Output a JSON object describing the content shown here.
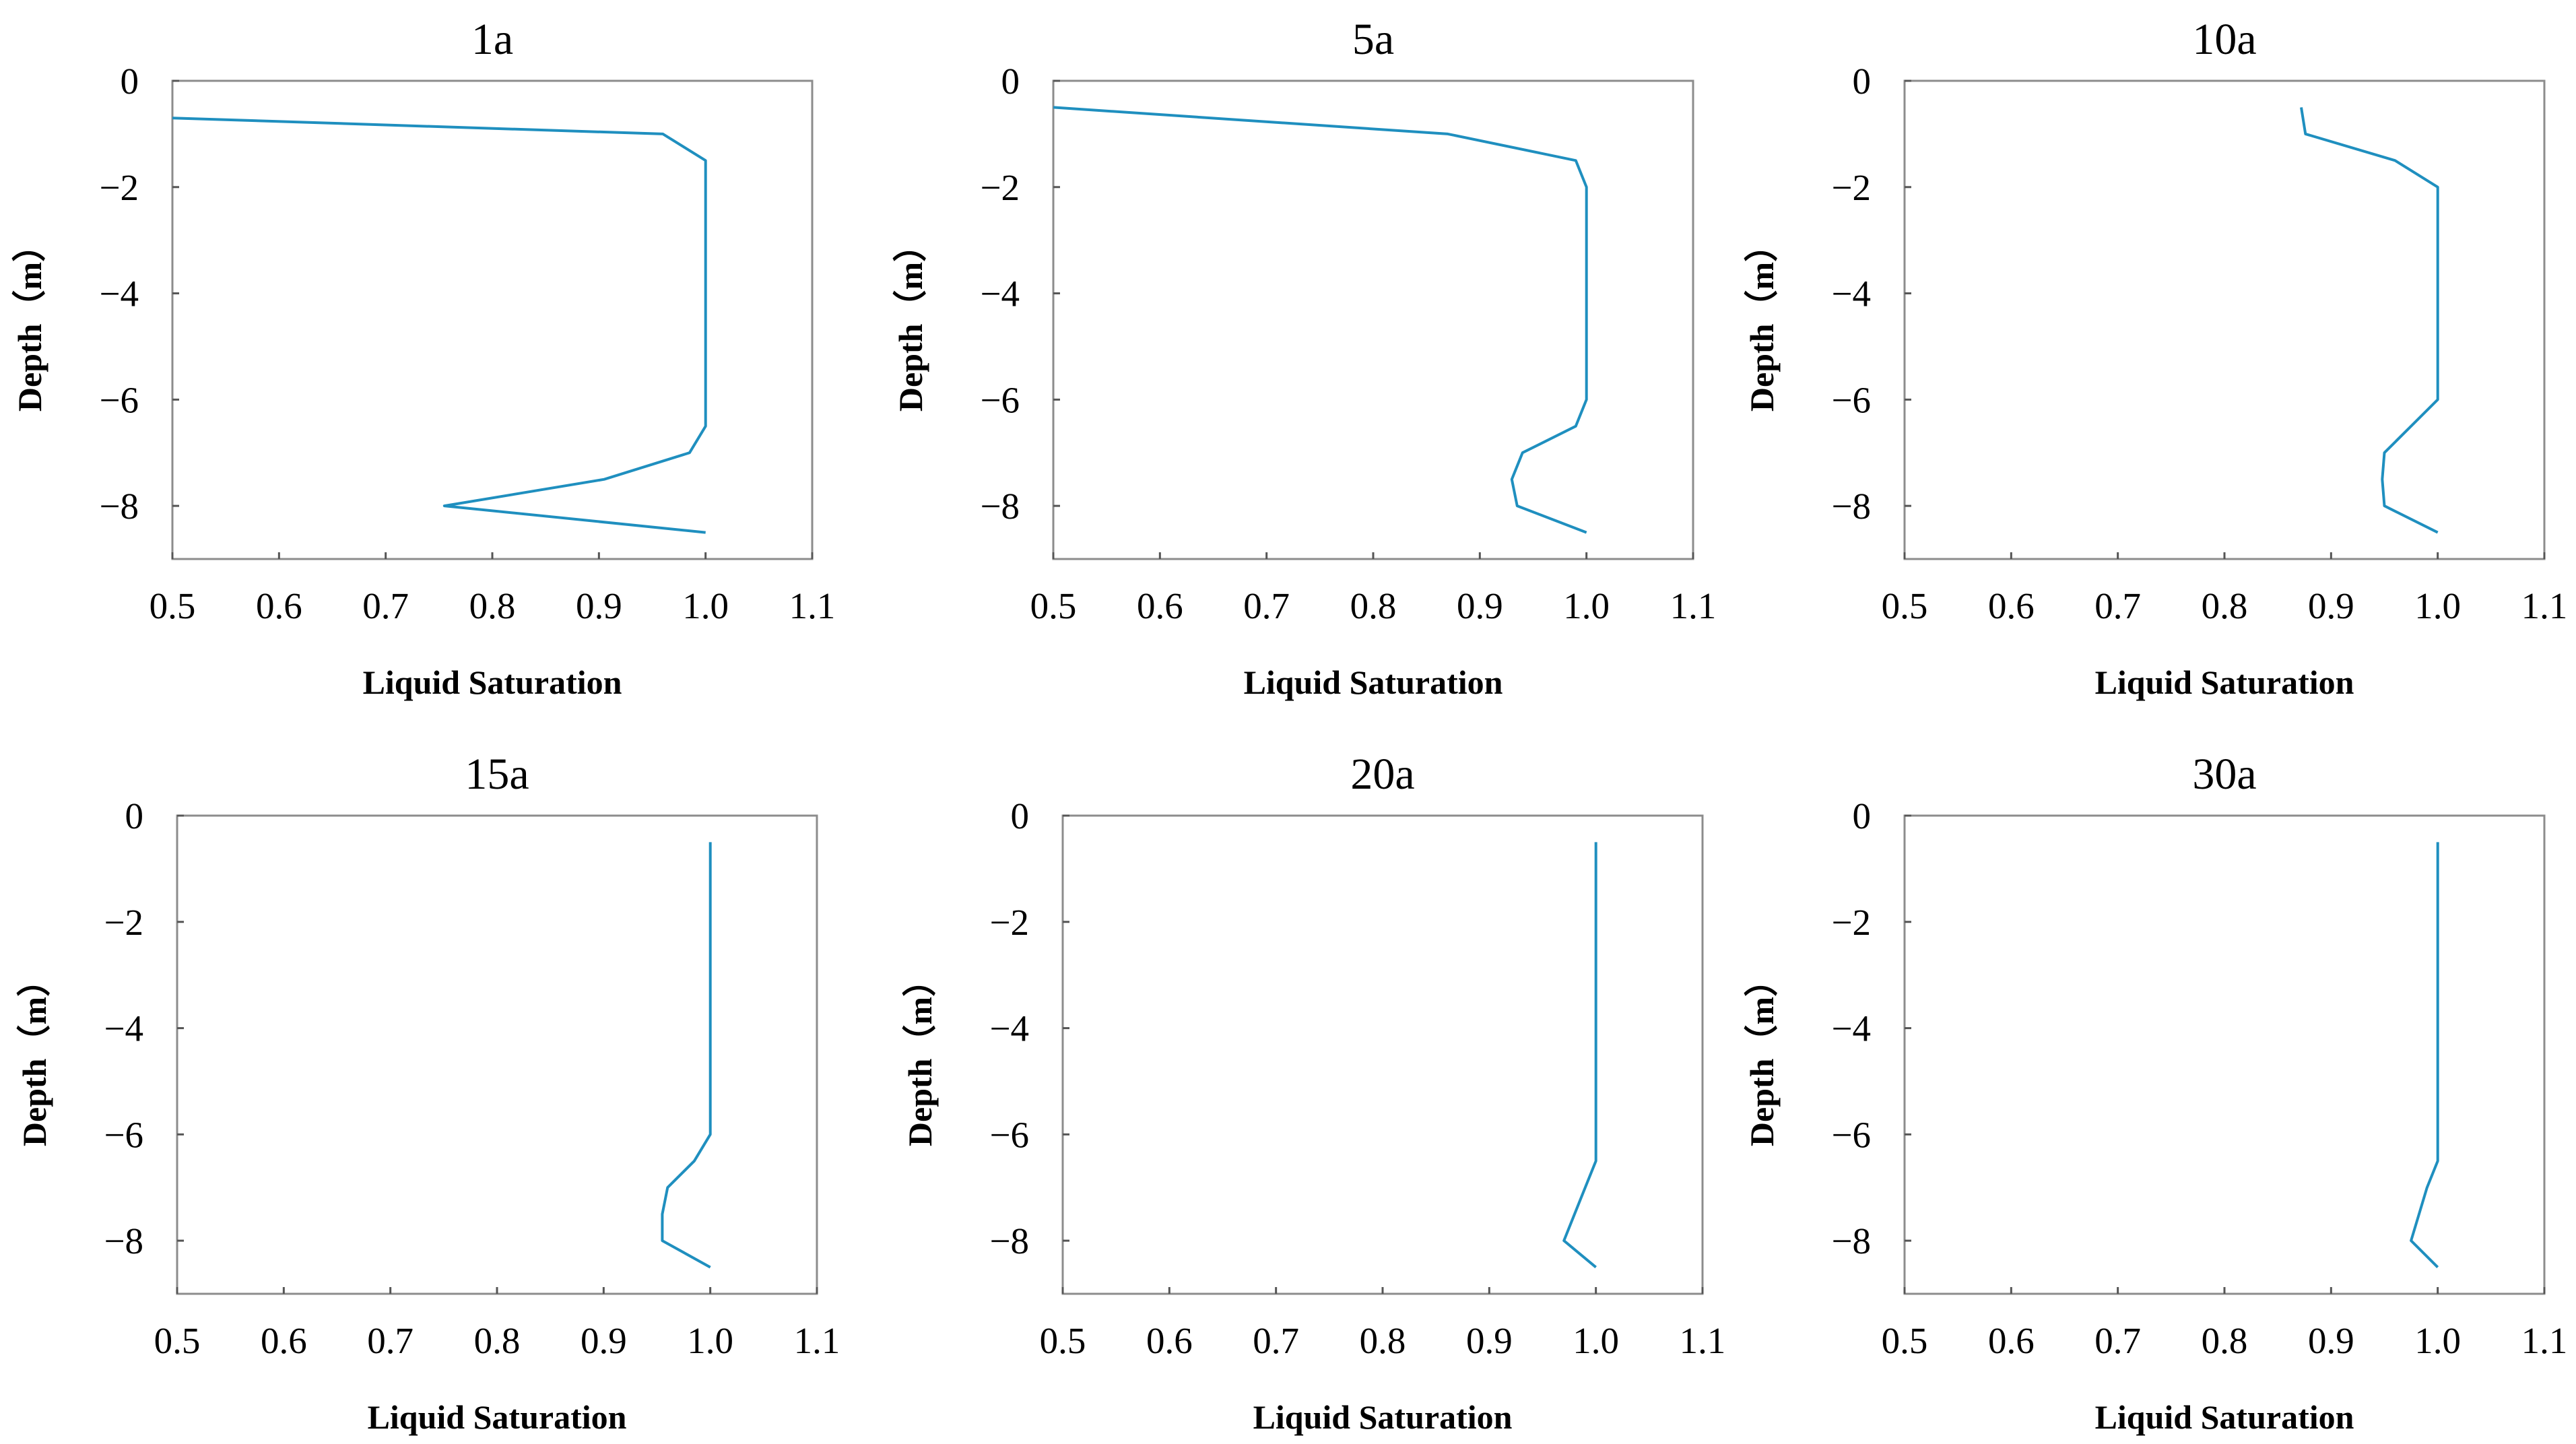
{
  "figure": {
    "line_color": "#1f8fbf",
    "axis_color": "#8c8c8c"
  },
  "chart_data": [
    {
      "type": "line",
      "title": "1a",
      "xlabel": "Liquid Saturation",
      "ylabel": "Depth（m）",
      "xlim": [
        0.5,
        1.1
      ],
      "ylim": [
        -9,
        0
      ],
      "xticks": [
        "0.5",
        "0.6",
        "0.7",
        "0.8",
        "0.9",
        "1.0",
        "1.1"
      ],
      "yticks": [
        "0",
        "−2",
        "−4",
        "−6",
        "−8"
      ],
      "series": [
        {
          "name": "saturation",
          "x": [
            0.5,
            0.96,
            1.0,
            1.0,
            1.0,
            1.0,
            0.985,
            0.905,
            0.755,
            1.0
          ],
          "y": [
            -0.7,
            -1.0,
            -1.5,
            -4.0,
            -6.0,
            -6.5,
            -7.0,
            -7.5,
            -8.0,
            -8.5
          ]
        }
      ]
    },
    {
      "type": "line",
      "title": "5a",
      "xlabel": "Liquid Saturation",
      "ylabel": "Depth（m）",
      "xlim": [
        0.5,
        1.1
      ],
      "ylim": [
        -9,
        0
      ],
      "xticks": [
        "0.5",
        "0.6",
        "0.7",
        "0.8",
        "0.9",
        "1.0",
        "1.1"
      ],
      "yticks": [
        "0",
        "−2",
        "−4",
        "−6",
        "−8"
      ],
      "series": [
        {
          "name": "saturation",
          "x": [
            0.5,
            0.87,
            0.99,
            1.0,
            1.0,
            1.0,
            0.99,
            0.94,
            0.93,
            0.935,
            1.0
          ],
          "y": [
            -0.5,
            -1.0,
            -1.5,
            -2.0,
            -4.0,
            -6.0,
            -6.5,
            -7.0,
            -7.5,
            -8.0,
            -8.5
          ]
        }
      ]
    },
    {
      "type": "line",
      "title": "10a",
      "xlabel": "Liquid Saturation",
      "ylabel": "Depth（m）",
      "xlim": [
        0.5,
        1.1
      ],
      "ylim": [
        -9,
        0
      ],
      "xticks": [
        "0.5",
        "0.6",
        "0.7",
        "0.8",
        "0.9",
        "1.0",
        "1.1"
      ],
      "yticks": [
        "0",
        "−2",
        "−4",
        "−6",
        "−8"
      ],
      "series": [
        {
          "name": "saturation",
          "x": [
            0.872,
            0.876,
            0.96,
            1.0,
            1.0,
            1.0,
            0.95,
            0.948,
            0.95,
            1.0
          ],
          "y": [
            -0.5,
            -1.0,
            -1.5,
            -2.0,
            -4.0,
            -6.0,
            -7.0,
            -7.5,
            -8.0,
            -8.5
          ]
        }
      ]
    },
    {
      "type": "line",
      "title": "15a",
      "xlabel": "Liquid Saturation",
      "ylabel": "Depth（m）",
      "xlim": [
        0.5,
        1.1
      ],
      "ylim": [
        -9,
        0
      ],
      "xticks": [
        "0.5",
        "0.6",
        "0.7",
        "0.8",
        "0.9",
        "1.0",
        "1.1"
      ],
      "yticks": [
        "0",
        "−2",
        "−4",
        "−6",
        "−8"
      ],
      "series": [
        {
          "name": "saturation",
          "x": [
            1.0,
            1.0,
            1.0,
            0.985,
            0.96,
            0.955,
            0.955,
            1.0
          ],
          "y": [
            -0.5,
            -4.0,
            -6.0,
            -6.5,
            -7.0,
            -7.5,
            -8.0,
            -8.5
          ]
        }
      ]
    },
    {
      "type": "line",
      "title": "20a",
      "xlabel": "Liquid Saturation",
      "ylabel": "Depth（m）",
      "xlim": [
        0.5,
        1.1
      ],
      "ylim": [
        -9,
        0
      ],
      "xticks": [
        "0.5",
        "0.6",
        "0.7",
        "0.8",
        "0.9",
        "1.0",
        "1.1"
      ],
      "yticks": [
        "0",
        "−2",
        "−4",
        "−6",
        "−8"
      ],
      "series": [
        {
          "name": "saturation",
          "x": [
            1.0,
            1.0,
            1.0,
            0.99,
            0.97,
            1.0
          ],
          "y": [
            -0.5,
            -4.0,
            -6.5,
            -7.0,
            -8.0,
            -8.5
          ]
        }
      ]
    },
    {
      "type": "line",
      "title": "30a",
      "xlabel": "Liquid Saturation",
      "ylabel": "Depth（m）",
      "xlim": [
        0.5,
        1.1
      ],
      "ylim": [
        -9,
        0
      ],
      "xticks": [
        "0.5",
        "0.6",
        "0.7",
        "0.8",
        "0.9",
        "1.0",
        "1.1"
      ],
      "yticks": [
        "0",
        "−2",
        "−4",
        "−6",
        "−8"
      ],
      "series": [
        {
          "name": "saturation",
          "x": [
            1.0,
            1.0,
            1.0,
            0.99,
            0.975,
            1.0
          ],
          "y": [
            -0.5,
            -4.0,
            -6.5,
            -7.0,
            -8.0,
            -8.5
          ]
        }
      ]
    }
  ]
}
